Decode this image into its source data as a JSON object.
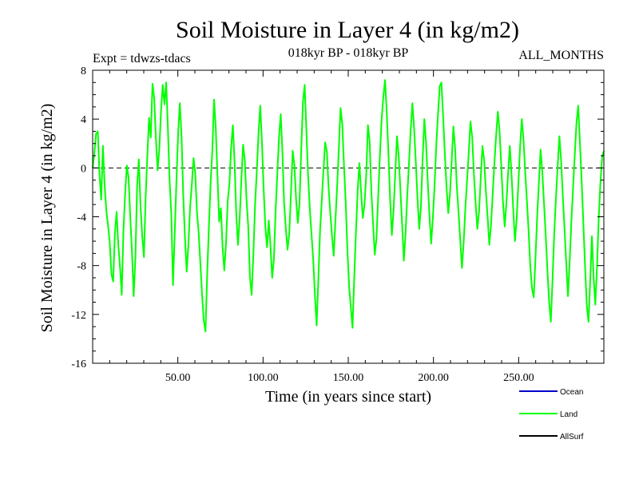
{
  "chart_data": {
    "type": "line",
    "title": "Soil Moisture in Layer 4 (in kg/m2)",
    "subtitle": "018kyr BP - 018kyr BP",
    "left_annotation": "Expt = tdwzs-tdacs",
    "right_annotation": "ALL_MONTHS",
    "xlabel": "Time (in years since start)",
    "ylabel": "Soil Moisture in Layer 4 (in kg/m2)",
    "xlim": [
      0,
      300
    ],
    "ylim": [
      -16,
      8
    ],
    "x_ticks": [
      50,
      100,
      150,
      200,
      250
    ],
    "x_tick_labels": [
      "50.00",
      "100.00",
      "150.00",
      "200.00",
      "250.00"
    ],
    "y_ticks": [
      -16,
      -12,
      -8,
      -4,
      0,
      4,
      8
    ],
    "y_tick_labels": [
      "-16",
      "-12",
      "-8",
      "-4",
      "0",
      "4",
      "8"
    ],
    "zero_line": true,
    "grid": false,
    "legend_position": "bottom-right",
    "colors": {
      "ocean": "#0000cc",
      "land": "#00ff00",
      "allsurf": "#000000",
      "axis": "#000000",
      "zero_line": "#000000"
    },
    "series": [
      {
        "name": "Land",
        "color": "#00ff00",
        "values": [
          0.0,
          1.2,
          2.8,
          3.0,
          -0.5,
          -2.6,
          1.8,
          -1.4,
          -3.5,
          -4.7,
          -6.1,
          -8.7,
          -9.3,
          -5.4,
          -3.6,
          -6.3,
          -8.1,
          -10.4,
          -5.2,
          -2.1,
          0.2,
          -0.8,
          -4.0,
          -6.9,
          -10.5,
          -7.4,
          -1.5,
          0.7,
          -3.1,
          -5.6,
          -7.3,
          -2.4,
          1.0,
          4.1,
          2.5,
          6.9,
          5.7,
          2.4,
          -0.2,
          1.6,
          4.7,
          6.8,
          5.2,
          7.0,
          3.3,
          -1.0,
          -3.8,
          -9.6,
          -5.4,
          -1.1,
          2.8,
          5.3,
          2.6,
          -2.3,
          -5.7,
          -8.5,
          -6.3,
          -3.2,
          -1.4,
          0.8,
          -0.4,
          -3.6,
          -5.3,
          -7.8,
          -10.4,
          -12.5,
          -13.4,
          -8.7,
          -4.8,
          -1.2,
          1.4,
          5.6,
          3.3,
          -0.6,
          -4.4,
          -3.3,
          -6.5,
          -8.4,
          -6.2,
          -2.7,
          -1.3,
          1.7,
          3.5,
          0.5,
          -3.8,
          -6.3,
          -4.1,
          -0.9,
          1.9,
          0.6,
          -2.6,
          -4.8,
          -8.9,
          -10.4,
          -7.1,
          -3.0,
          -0.3,
          2.8,
          5.1,
          2.2,
          -1.7,
          -4.8,
          -6.5,
          -4.3,
          -6.4,
          -9.0,
          -7.5,
          -3.6,
          -0.5,
          2.5,
          4.4,
          1.3,
          -2.9,
          -5.0,
          -6.7,
          -5.4,
          -2.1,
          1.4,
          0.2,
          -2.6,
          -4.5,
          -2.9,
          1.5,
          5.4,
          6.8,
          3.1,
          -0.6,
          -3.3,
          -5.4,
          -7.5,
          -10.4,
          -12.9,
          -9.2,
          -5.2,
          -2.7,
          -0.2,
          2.1,
          1.3,
          -1.6,
          -3.7,
          -5.6,
          -7.2,
          -4.3,
          -1.5,
          1.6,
          4.9,
          3.6,
          0.2,
          -2.8,
          -6.7,
          -9.7,
          -11.4,
          -13.1,
          -9.0,
          -5.3,
          -1.9,
          0.4,
          -1.9,
          -4.1,
          -3.0,
          -0.6,
          3.5,
          2.2,
          -1.9,
          -4.5,
          -7.1,
          -5.8,
          -2.4,
          1.0,
          3.9,
          5.8,
          7.2,
          4.6,
          1.2,
          -2.6,
          -5.5,
          -3.5,
          -0.4,
          2.6,
          1.0,
          -1.8,
          -4.6,
          -7.6,
          -5.4,
          -2.3,
          0.3,
          3.1,
          5.3,
          3.3,
          0.5,
          -2.5,
          -5.0,
          -3.2,
          0.7,
          4.0,
          2.1,
          -1.1,
          -3.9,
          -6.2,
          -4.1,
          -1.4,
          1.9,
          4.4,
          6.7,
          7.0,
          4.2,
          1.1,
          -1.6,
          -3.7,
          -2.1,
          0.6,
          3.4,
          1.6,
          -1.5,
          -3.6,
          -5.9,
          -8.2,
          -6.1,
          -3.3,
          -1.0,
          1.3,
          3.8,
          2.5,
          -0.5,
          -2.9,
          -5.0,
          -3.6,
          -0.8,
          1.8,
          0.6,
          -1.9,
          -4.0,
          -6.3,
          -4.7,
          -2.1,
          0.4,
          2.7,
          4.6,
          3.0,
          0.2,
          -2.8,
          -4.8,
          -2.9,
          -0.4,
          1.8,
          -0.5,
          -3.4,
          -6.0,
          -4.2,
          -1.3,
          1.7,
          4.0,
          2.3,
          -0.3,
          -2.7,
          -5.2,
          -8.1,
          -9.9,
          -10.6,
          -7.4,
          -4.0,
          -1.2,
          1.5,
          -0.3,
          -2.9,
          -5.5,
          -8.4,
          -11.0,
          -12.6,
          -9.1,
          -5.3,
          -2.4,
          0.2,
          2.6,
          0.6,
          -2.3,
          -5.0,
          -7.8,
          -10.5,
          -7.7,
          -4.4,
          -1.6,
          1.1,
          3.7,
          5.1,
          2.1,
          -1.0,
          -4.5,
          -8.0,
          -11.2,
          -12.6,
          -9.3,
          -5.6,
          -8.9,
          -11.2,
          -8.1,
          -4.1,
          -1.2,
          0.9,
          1.4
        ]
      }
    ]
  },
  "legend": {
    "items": [
      {
        "label": "Ocean",
        "color": "#0000cc"
      },
      {
        "label": "Land",
        "color": "#00ff00"
      },
      {
        "label": "AllSurf",
        "color": "#000000"
      }
    ]
  }
}
